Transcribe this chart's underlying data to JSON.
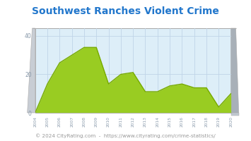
{
  "title": "Southwest Ranches Violent Crime",
  "years": [
    2004,
    2005,
    2006,
    2007,
    2008,
    2009,
    2010,
    2011,
    2012,
    2013,
    2014,
    2015,
    2016,
    2017,
    2018,
    2019,
    2020
  ],
  "values": [
    0,
    15,
    26,
    30,
    34,
    34,
    15,
    20,
    21,
    11,
    11,
    14,
    15,
    13,
    13,
    3,
    10
  ],
  "ylim": [
    0,
    44
  ],
  "yticks": [
    0,
    20,
    40
  ],
  "fill_color": "#99cc22",
  "line_color": "#77aa00",
  "bg_color": "#ffffff",
  "plot_bg": "#ddeef8",
  "grid_color": "#c0d4e8",
  "title_color": "#2277cc",
  "side_panel_color": "#c8cdd4",
  "side_panel_dark": "#a8b0b8",
  "footer_text": "© 2024 CityRating.com  -  https://www.cityrating.com/crime-statistics/",
  "footer_color": "#999999",
  "title_fontsize": 10,
  "footer_fontsize": 5.2,
  "tick_color": "#8899aa"
}
